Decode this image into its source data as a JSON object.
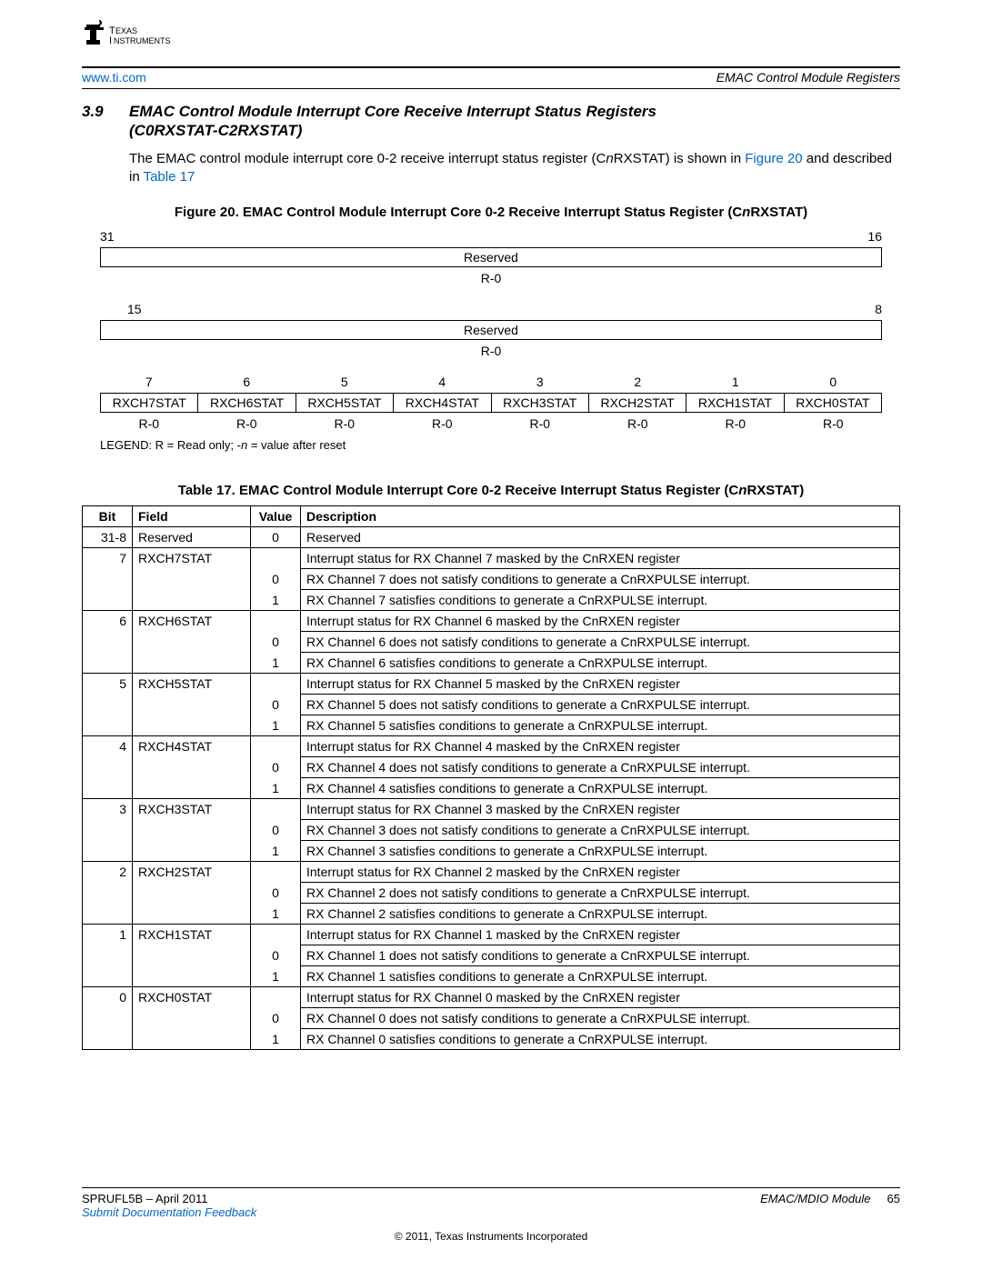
{
  "header": {
    "url": "www.ti.com",
    "right": "EMAC Control Module Registers"
  },
  "section": {
    "num": "3.9",
    "title_l1": "EMAC Control Module Interrupt Core Receive Interrupt Status Registers",
    "title_l2": "(C0RXSTAT-C2RXSTAT)"
  },
  "body": {
    "t1": "The EMAC control module interrupt core 0-2 receive interrupt status register (C",
    "nrx": "n",
    "t2": "RXSTAT) is shown in ",
    "fig_link": "Figure 20",
    "t3": " and described in ",
    "tbl_link": "Table 17"
  },
  "figure": {
    "caption_pre": "Figure 20. EMAC Control Module Interrupt Core 0-2 Receive Interrupt Status Register (C",
    "caption_n": "n",
    "caption_post": "RXSTAT)",
    "bit31": "31",
    "bit16": "16",
    "reserved": "Reserved",
    "r0": "R-0",
    "bit15": "15",
    "bit8": "8",
    "bits_low": [
      "7",
      "6",
      "5",
      "4",
      "3",
      "2",
      "1",
      "0"
    ],
    "fields_low": [
      "RXCH7STAT",
      "RXCH6STAT",
      "RXCH5STAT",
      "RXCH4STAT",
      "RXCH3STAT",
      "RXCH2STAT",
      "RXCH1STAT",
      "RXCH0STAT"
    ],
    "r0_low": [
      "R-0",
      "R-0",
      "R-0",
      "R-0",
      "R-0",
      "R-0",
      "R-0",
      "R-0"
    ],
    "legend_pre": "LEGEND: R = Read only; -",
    "legend_n": "n",
    "legend_post": " = value after reset"
  },
  "table": {
    "caption_pre": "Table 17. EMAC Control Module Interrupt Core 0-2 Receive Interrupt Status Register (C",
    "caption_n": "n",
    "caption_post": "RXSTAT)",
    "headers": {
      "bit": "Bit",
      "field": "Field",
      "value": "Value",
      "desc": "Description"
    },
    "rows": [
      {
        "bit": "31-8",
        "field": "Reserved",
        "value": "0",
        "desc": "Reserved",
        "main": true,
        "single": true
      },
      {
        "bit": "7",
        "field": "RXCH7STAT",
        "value": "",
        "desc": "Interrupt status for RX Channel 7 masked by the CnRXEN register",
        "main": true
      },
      {
        "bit": "",
        "field": "",
        "value": "0",
        "desc": "RX Channel 7 does not satisfy conditions to generate a CnRXPULSE interrupt."
      },
      {
        "bit": "",
        "field": "",
        "value": "1",
        "desc": "RX Channel 7 satisfies conditions to generate a CnRXPULSE interrupt.",
        "last": true
      },
      {
        "bit": "6",
        "field": "RXCH6STAT",
        "value": "",
        "desc": "Interrupt status for RX Channel 6 masked by the CnRXEN register",
        "main": true
      },
      {
        "bit": "",
        "field": "",
        "value": "0",
        "desc": "RX Channel 6 does not satisfy conditions to generate a CnRXPULSE interrupt."
      },
      {
        "bit": "",
        "field": "",
        "value": "1",
        "desc": "RX Channel 6 satisfies conditions to generate a CnRXPULSE interrupt.",
        "last": true
      },
      {
        "bit": "5",
        "field": "RXCH5STAT",
        "value": "",
        "desc": "Interrupt status for RX Channel 5 masked by the CnRXEN register",
        "main": true
      },
      {
        "bit": "",
        "field": "",
        "value": "0",
        "desc": "RX Channel 5 does not satisfy conditions to generate a CnRXPULSE interrupt."
      },
      {
        "bit": "",
        "field": "",
        "value": "1",
        "desc": "RX Channel 5 satisfies conditions to generate a CnRXPULSE interrupt.",
        "last": true
      },
      {
        "bit": "4",
        "field": "RXCH4STAT",
        "value": "",
        "desc": "Interrupt status for RX Channel 4 masked by the CnRXEN register",
        "main": true
      },
      {
        "bit": "",
        "field": "",
        "value": "0",
        "desc": "RX Channel 4 does not satisfy conditions to generate a CnRXPULSE interrupt."
      },
      {
        "bit": "",
        "field": "",
        "value": "1",
        "desc": "RX Channel 4 satisfies conditions to generate a CnRXPULSE interrupt.",
        "last": true
      },
      {
        "bit": "3",
        "field": "RXCH3STAT",
        "value": "",
        "desc": "Interrupt status for RX Channel 3 masked by the CnRXEN register",
        "main": true
      },
      {
        "bit": "",
        "field": "",
        "value": "0",
        "desc": "RX Channel 3 does not satisfy conditions to generate a CnRXPULSE interrupt."
      },
      {
        "bit": "",
        "field": "",
        "value": "1",
        "desc": "RX Channel 3 satisfies conditions to generate a CnRXPULSE interrupt.",
        "last": true
      },
      {
        "bit": "2",
        "field": "RXCH2STAT",
        "value": "",
        "desc": "Interrupt status for RX Channel 2 masked by the CnRXEN register",
        "main": true
      },
      {
        "bit": "",
        "field": "",
        "value": "0",
        "desc": "RX Channel 2 does not satisfy conditions to generate a CnRXPULSE interrupt."
      },
      {
        "bit": "",
        "field": "",
        "value": "1",
        "desc": "RX Channel 2 satisfies conditions to generate a CnRXPULSE interrupt.",
        "last": true
      },
      {
        "bit": "1",
        "field": "RXCH1STAT",
        "value": "",
        "desc": "Interrupt status for RX Channel 1 masked by the CnRXEN register",
        "main": true
      },
      {
        "bit": "",
        "field": "",
        "value": "0",
        "desc": "RX Channel 1 does not satisfy conditions to generate a CnRXPULSE interrupt."
      },
      {
        "bit": "",
        "field": "",
        "value": "1",
        "desc": "RX Channel 1 satisfies conditions to generate a CnRXPULSE interrupt.",
        "last": true
      },
      {
        "bit": "0",
        "field": "RXCH0STAT",
        "value": "",
        "desc": "Interrupt status for RX Channel 0 masked by the CnRXEN register",
        "main": true
      },
      {
        "bit": "",
        "field": "",
        "value": "0",
        "desc": "RX Channel 0 does not satisfy conditions to generate a CnRXPULSE interrupt."
      },
      {
        "bit": "",
        "field": "",
        "value": "1",
        "desc": "RX Channel 0 satisfies conditions to generate a CnRXPULSE interrupt.",
        "last": true
      }
    ]
  },
  "footer": {
    "docnum": "SPRUFL5B – April 2011",
    "module": "EMAC/MDIO Module",
    "page": "65",
    "feedback": "Submit Documentation Feedback",
    "copyright": "© 2011, Texas Instruments Incorporated"
  }
}
